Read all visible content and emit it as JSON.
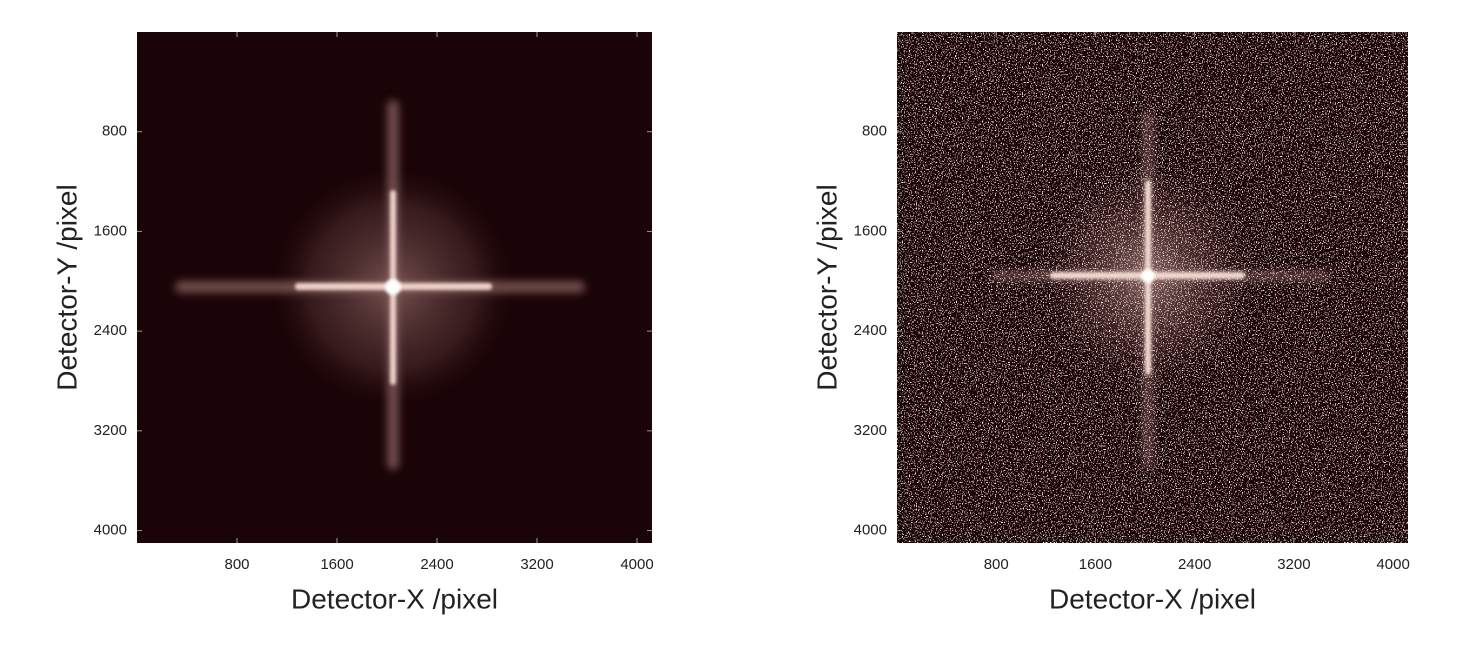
{
  "chart_data": [
    {
      "type": "image",
      "xlabel": "Detector-X /pixel",
      "ylabel": "Detector-Y /pixel",
      "xlim": [
        0,
        4120
      ],
      "ylim": [
        4100,
        0
      ],
      "xticks": [
        800,
        1600,
        2400,
        3200,
        4000
      ],
      "yticks": [
        800,
        1600,
        2400,
        3200,
        4000
      ]
    },
    {
      "type": "image",
      "xlabel": "Detector-X /pixel",
      "ylabel": "Detector-Y /pixel",
      "xlim": [
        0,
        4120
      ],
      "ylim": [
        4100,
        0
      ],
      "xticks": [
        800,
        1600,
        2400,
        3200,
        4000
      ],
      "yticks": [
        800,
        1600,
        2400,
        3200,
        4000
      ]
    }
  ]
}
